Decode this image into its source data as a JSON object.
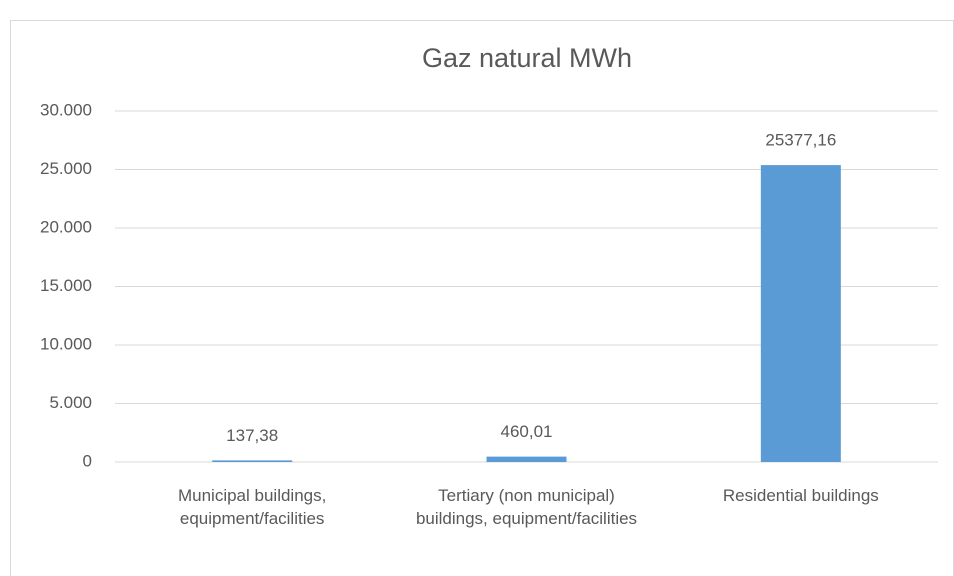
{
  "chart_data": {
    "type": "bar",
    "title": "Gaz natural MWh",
    "categories": [
      "Municipal buildings, equipment/facilities",
      "Tertiary (non municipal) buildings, equipment/facilities",
      "Residential buildings"
    ],
    "values": [
      137.38,
      460.01,
      25377.16
    ],
    "value_labels": [
      "137,38",
      "460,01",
      "25377,16"
    ],
    "color": "#5b9bd5",
    "ylim": [
      0,
      30000
    ],
    "yticks": [
      0,
      {
        "value": 5000,
        "label": "5.000"
      },
      {
        "value": 10000,
        "label": "10.000"
      },
      {
        "value": 15000,
        "label": "15.000"
      },
      {
        "value": 20000,
        "label": "20.000"
      },
      {
        "value": 25000,
        "label": "25.000"
      },
      {
        "value": 30000,
        "label": "30.000"
      }
    ],
    "grid": true
  }
}
